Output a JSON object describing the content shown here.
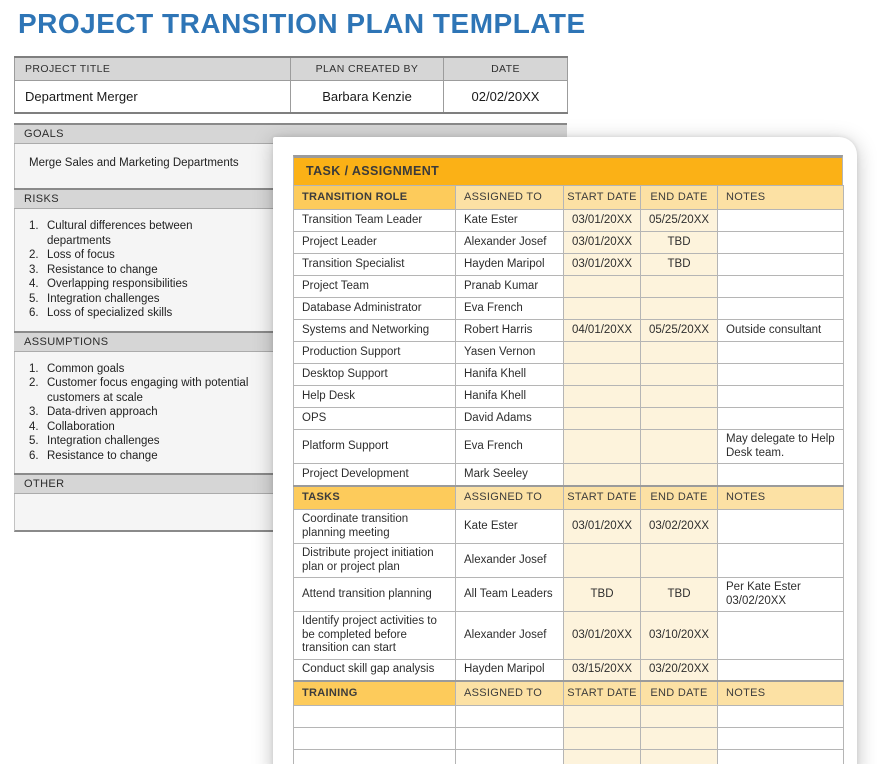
{
  "page_title": "PROJECT TRANSITION PLAN TEMPLATE",
  "info_table": {
    "headers": [
      "PROJECT TITLE",
      "PLAN CREATED BY",
      "DATE"
    ],
    "project_title": "Department Merger",
    "plan_created_by": "Barbara Kenzie",
    "date": "02/02/20XX"
  },
  "sections": [
    {
      "title": "GOALS",
      "content": "Merge Sales and Marketing Departments"
    },
    {
      "title": "RISKS",
      "items": [
        "Cultural differences between departments",
        "Loss of focus",
        "Resistance to change",
        "Overlapping responsibilities",
        "Integration challenges",
        "Loss of specialized skills"
      ]
    },
    {
      "title": "ASSUMPTIONS",
      "items": [
        "Common goals",
        "Customer focus engaging with potential customers at scale",
        "Data-driven approach",
        "Collaboration",
        "Integration challenges",
        "Resistance to change"
      ]
    },
    {
      "title": "OTHER",
      "content": ""
    }
  ],
  "task_panel": {
    "banner": "TASK / ASSIGNMENT",
    "shared_headers": [
      "ASSIGNED TO",
      "START DATE",
      "END DATE",
      "NOTES"
    ],
    "groups": [
      {
        "label": "TRANSITION ROLE",
        "rows": [
          {
            "task": "Transition Team Leader",
            "assigned_to": "Kate Ester",
            "start_date": "03/01/20XX",
            "end_date": "05/25/20XX",
            "notes": ""
          },
          {
            "task": "Project Leader",
            "assigned_to": "Alexander Josef",
            "start_date": "03/01/20XX",
            "end_date": "TBD",
            "notes": ""
          },
          {
            "task": "Transition Specialist",
            "assigned_to": "Hayden Maripol",
            "start_date": "03/01/20XX",
            "end_date": "TBD",
            "notes": ""
          },
          {
            "task": "Project Team",
            "assigned_to": "Pranab Kumar",
            "start_date": "",
            "end_date": "",
            "notes": ""
          },
          {
            "task": "Database Administrator",
            "assigned_to": "Eva French",
            "start_date": "",
            "end_date": "",
            "notes": ""
          },
          {
            "task": "Systems and Networking",
            "assigned_to": "Robert Harris",
            "start_date": "04/01/20XX",
            "end_date": "05/25/20XX",
            "notes": "Outside consultant"
          },
          {
            "task": "Production Support",
            "assigned_to": "Yasen Vernon",
            "start_date": "",
            "end_date": "",
            "notes": ""
          },
          {
            "task": "Desktop Support",
            "assigned_to": "Hanifa Khell",
            "start_date": "",
            "end_date": "",
            "notes": ""
          },
          {
            "task": "Help Desk",
            "assigned_to": "Hanifa Khell",
            "start_date": "",
            "end_date": "",
            "notes": ""
          },
          {
            "task": "OPS",
            "assigned_to": "David Adams",
            "start_date": "",
            "end_date": "",
            "notes": ""
          },
          {
            "task": "Platform Support",
            "assigned_to": "Eva French",
            "start_date": "",
            "end_date": "",
            "notes": "May delegate to Help Desk team."
          },
          {
            "task": "Project Development",
            "assigned_to": "Mark Seeley",
            "start_date": "",
            "end_date": "",
            "notes": ""
          }
        ]
      },
      {
        "label": "TASKS",
        "rows": [
          {
            "task": "Coordinate transition planning meeting",
            "assigned_to": "Kate Ester",
            "start_date": "03/01/20XX",
            "end_date": "03/02/20XX",
            "notes": ""
          },
          {
            "task": "Distribute project initiation plan or project plan",
            "assigned_to": "Alexander Josef",
            "start_date": "",
            "end_date": "",
            "notes": ""
          },
          {
            "task": "Attend transition planning",
            "assigned_to": "All Team Leaders",
            "start_date": "TBD",
            "end_date": "TBD",
            "notes": "Per Kate Ester 03/02/20XX"
          },
          {
            "task": "Identify project activities to be completed before transition can start",
            "assigned_to": "Alexander Josef",
            "start_date": "03/01/20XX",
            "end_date": "03/10/20XX",
            "notes": ""
          },
          {
            "task": "Conduct skill gap analysis",
            "assigned_to": "Hayden Maripol",
            "start_date": "03/15/20XX",
            "end_date": "03/20/20XX",
            "notes": ""
          }
        ]
      },
      {
        "label": "TRAINING",
        "rows": [
          {
            "task": "",
            "assigned_to": "",
            "start_date": "",
            "end_date": "",
            "notes": ""
          },
          {
            "task": "",
            "assigned_to": "",
            "start_date": "",
            "end_date": "",
            "notes": ""
          },
          {
            "task": "",
            "assigned_to": "",
            "start_date": "",
            "end_date": "",
            "notes": ""
          }
        ]
      }
    ]
  },
  "colors": {
    "title_blue": "#2E75B6",
    "banner_orange": "#FBB116",
    "group_gold": "#FDCB5B",
    "header_tan": "#FCE1A4",
    "date_cream": "#FDF3DC",
    "bar_gray": "#D6D6D6",
    "section_bg": "#F5F5F5"
  }
}
